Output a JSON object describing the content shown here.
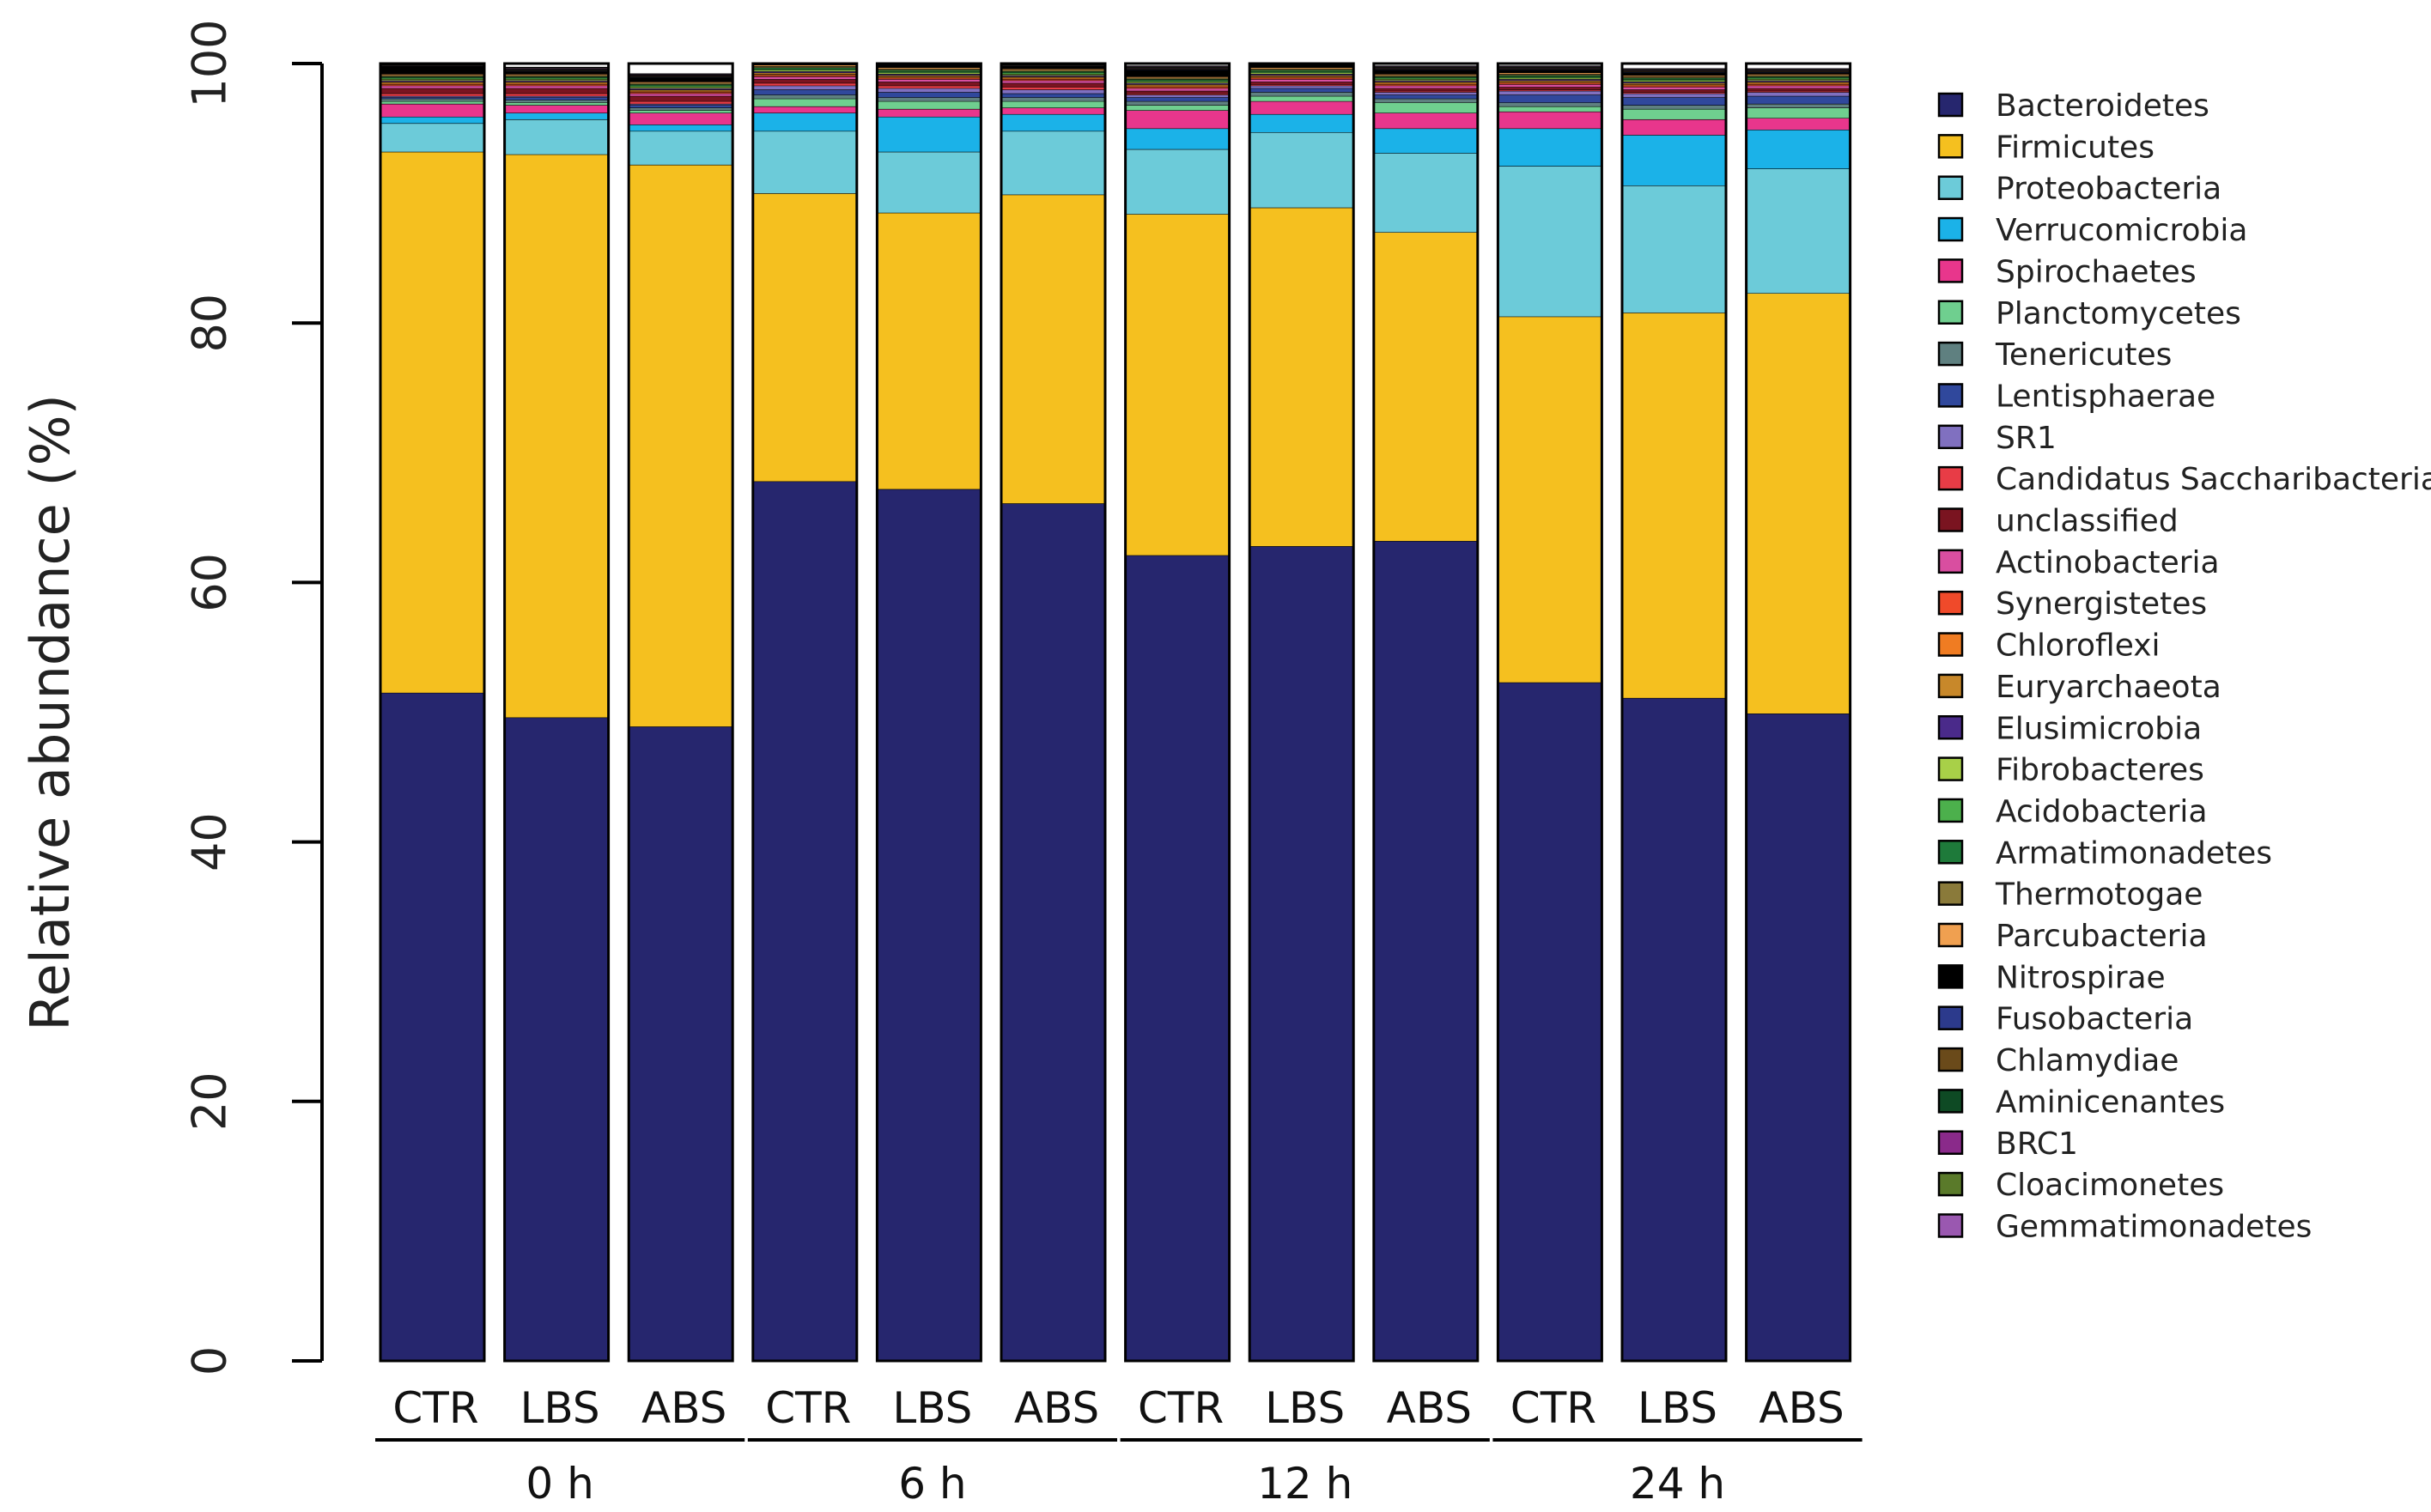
{
  "chart_data": {
    "type": "bar",
    "stacked": true,
    "title": "",
    "xlabel": "",
    "ylabel": "Relative abundance (%)",
    "ylim": [
      0,
      100
    ],
    "yticks": [
      "0",
      "20",
      "40",
      "60",
      "80",
      "100"
    ],
    "categories": [
      "CTR",
      "LBS",
      "ABS",
      "CTR",
      "LBS",
      "ABS",
      "CTR",
      "LBS",
      "ABS",
      "CTR",
      "LBS",
      "ABS"
    ],
    "groups": [
      {
        "label": "0 h",
        "from": 0,
        "to": 2
      },
      {
        "label": "6 h",
        "from": 3,
        "to": 5
      },
      {
        "label": "12 h",
        "from": 6,
        "to": 8
      },
      {
        "label": "24 h",
        "from": 9,
        "to": 11
      }
    ],
    "series": [
      {
        "name": "Bacteroidetes",
        "color": "#26266e",
        "values": [
          51.5,
          49.6,
          48.9,
          67.8,
          67.2,
          66.1,
          62.1,
          62.8,
          63.2,
          52.3,
          51.1,
          49.9
        ]
      },
      {
        "name": "Firmicutes",
        "color": "#f5c01f",
        "values": [
          41.7,
          43.4,
          43.3,
          22.2,
          21.3,
          23.8,
          26.3,
          26.1,
          23.8,
          28.2,
          29.7,
          32.4
        ]
      },
      {
        "name": "Proteobacteria",
        "color": "#6ccbd9",
        "values": [
          2.2,
          2.7,
          2.6,
          4.8,
          4.7,
          4.9,
          5.0,
          5.8,
          6.1,
          11.6,
          9.8,
          9.6
        ]
      },
      {
        "name": "Verrucomicrobia",
        "color": "#1bb2e8",
        "values": [
          0.5,
          0.5,
          0.5,
          1.4,
          2.7,
          1.3,
          1.6,
          1.4,
          1.9,
          2.9,
          3.9,
          3.0
        ]
      },
      {
        "name": "Spirochaetes",
        "color": "#e8368c",
        "values": [
          1.0,
          0.6,
          0.9,
          0.5,
          0.6,
          0.5,
          1.4,
          1.0,
          1.2,
          1.3,
          1.2,
          0.9
        ]
      },
      {
        "name": "Planctomycetes",
        "color": "#6fcf8f",
        "values": [
          0.2,
          0.2,
          0.2,
          0.6,
          0.6,
          0.5,
          0.4,
          0.4,
          0.8,
          0.4,
          0.8,
          0.8
        ]
      },
      {
        "name": "Tenericutes",
        "color": "#5f8080",
        "values": [
          0.2,
          0.2,
          0.2,
          0.3,
          0.3,
          0.3,
          0.3,
          0.3,
          0.3,
          0.3,
          0.3,
          0.3
        ]
      },
      {
        "name": "Lentisphaerae",
        "color": "#30489c",
        "values": [
          0.1,
          0.2,
          0.2,
          0.4,
          0.4,
          0.3,
          0.3,
          0.3,
          0.3,
          0.6,
          0.6,
          0.6
        ]
      },
      {
        "name": "SR1",
        "color": "#8070c0",
        "values": [
          0.1,
          0.1,
          0.1,
          0.3,
          0.3,
          0.3,
          0.2,
          0.2,
          0.2,
          0.3,
          0.3,
          0.3
        ]
      },
      {
        "name": "Candidatus Saccharibacteria",
        "color": "#e83c46",
        "values": [
          0.2,
          0.2,
          0.2,
          0.2,
          0.2,
          0.2,
          0.1,
          0.1,
          0.1,
          0.1,
          0.1,
          0.1
        ]
      },
      {
        "name": "unclassified",
        "color": "#7a1420",
        "values": [
          0.4,
          0.4,
          0.4,
          0.3,
          0.3,
          0.3,
          0.2,
          0.2,
          0.2,
          0.2,
          0.2,
          0.2
        ]
      },
      {
        "name": "Actinobacteria",
        "color": "#d94ea0",
        "values": [
          0.2,
          0.2,
          0.2,
          0.2,
          0.2,
          0.2,
          0.2,
          0.2,
          0.2,
          0.2,
          0.2,
          0.2
        ]
      },
      {
        "name": "Synergistetes",
        "color": "#f04a2a",
        "values": [
          0.1,
          0.1,
          0.1,
          0.1,
          0.1,
          0.1,
          0.1,
          0.1,
          0.1,
          0.1,
          0.1,
          0.1
        ]
      },
      {
        "name": "Chloroflexi",
        "color": "#f07c22",
        "values": [
          0.1,
          0.1,
          0.1,
          0.1,
          0.1,
          0.1,
          0.1,
          0.1,
          0.1,
          0.1,
          0.1,
          0.1
        ]
      },
      {
        "name": "Euryarchaeota",
        "color": "#c8882a",
        "values": [
          0.1,
          0.1,
          0.1,
          0.1,
          0.1,
          0.1,
          0.1,
          0.1,
          0.1,
          0.1,
          0.1,
          0.1
        ]
      },
      {
        "name": "Elusimicrobia",
        "color": "#4a2a8a",
        "values": [
          0.1,
          0.1,
          0.1,
          0.1,
          0.1,
          0.1,
          0.1,
          0.1,
          0.1,
          0.1,
          0.1,
          0.1
        ]
      },
      {
        "name": "Fibrobacteres",
        "color": "#a8d048",
        "values": [
          0.1,
          0.1,
          0.1,
          0.1,
          0.1,
          0.1,
          0.1,
          0.1,
          0.1,
          0.1,
          0.1,
          0.1
        ]
      },
      {
        "name": "Acidobacteria",
        "color": "#4cb04c",
        "values": [
          0.1,
          0.1,
          0.1,
          0.1,
          0.1,
          0.1,
          0.1,
          0.1,
          0.1,
          0.1,
          0.1,
          0.1
        ]
      },
      {
        "name": "Armatimonadetes",
        "color": "#1e7a3a",
        "values": [
          0.1,
          0.1,
          0.1,
          0.1,
          0.1,
          0.1,
          0.1,
          0.1,
          0.1,
          0.1,
          0.1,
          0.1
        ]
      },
      {
        "name": "Thermotogae",
        "color": "#8a7a3a",
        "values": [
          0.1,
          0.1,
          0.1,
          0.1,
          0.1,
          0.1,
          0.1,
          0.1,
          0.1,
          0.1,
          0.1,
          0.1
        ]
      },
      {
        "name": "Parcubacteria",
        "color": "#f0a050",
        "values": [
          0.1,
          0.1,
          0.1,
          0.1,
          0.1,
          0.1,
          0.1,
          0.1,
          0.1,
          0.1,
          0.1,
          0.1
        ]
      },
      {
        "name": "Nitrospirae",
        "color": "#000000",
        "values": [
          0.6,
          0.2,
          0.3,
          0.1,
          0.2,
          0.2,
          0.5,
          0.6,
          0.3,
          0.2,
          0.2,
          0.1
        ]
      },
      {
        "name": "Fusobacteria",
        "color": "#2c3a8c",
        "values": [
          0.05,
          0.05,
          0.05,
          0.05,
          0.05,
          0.05,
          0.05,
          0.05,
          0.05,
          0.05,
          0.05,
          0.05
        ]
      },
      {
        "name": "Chlamydiae",
        "color": "#6a4a1a",
        "values": [
          0.05,
          0.05,
          0.05,
          0.05,
          0.05,
          0.05,
          0.05,
          0.05,
          0.05,
          0.05,
          0.05,
          0.05
        ]
      },
      {
        "name": "Aminicenantes",
        "color": "#0e4a24",
        "values": [
          0.05,
          0.05,
          0.05,
          0.05,
          0.05,
          0.05,
          0.05,
          0.05,
          0.05,
          0.05,
          0.05,
          0.05
        ]
      },
      {
        "name": "BRC1",
        "color": "#8a2a8a",
        "values": [
          0.05,
          0.05,
          0.05,
          0.05,
          0.05,
          0.05,
          0.05,
          0.05,
          0.05,
          0.05,
          0.05,
          0.05
        ]
      },
      {
        "name": "Cloacimonetes",
        "color": "#5a7a2a",
        "values": [
          0.05,
          0.05,
          0.05,
          0.05,
          0.05,
          0.05,
          0.05,
          0.05,
          0.05,
          0.05,
          0.05,
          0.05
        ]
      },
      {
        "name": "Gemmatimonadetes",
        "color": "#9a58b0",
        "values": [
          0.05,
          0.05,
          0.05,
          0.05,
          0.05,
          0.05,
          0.05,
          0.05,
          0.05,
          0.05,
          0.05,
          0.05
        ]
      }
    ],
    "legend_position": "right"
  }
}
